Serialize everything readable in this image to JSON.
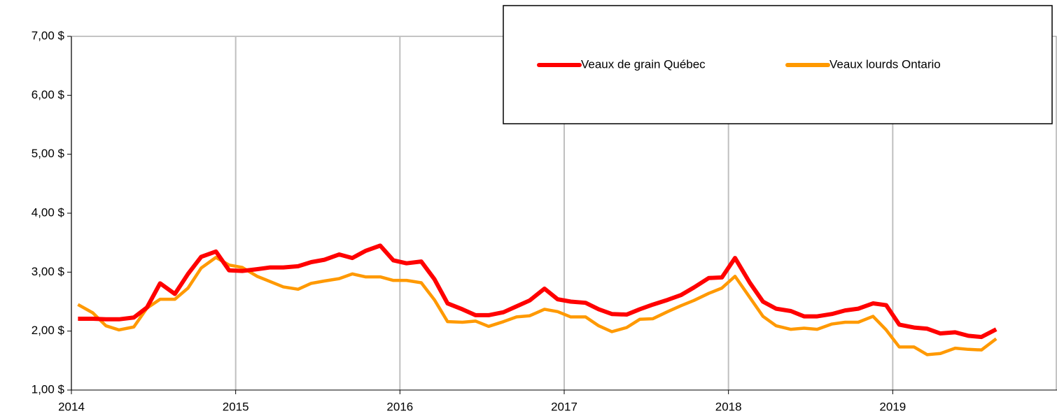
{
  "chart_data": {
    "type": "line",
    "x": [
      2014.04,
      2014.13,
      2014.21,
      2014.29,
      2014.38,
      2014.46,
      2014.54,
      2014.63,
      2014.71,
      2014.79,
      2014.88,
      2014.96,
      2015.04,
      2015.13,
      2015.21,
      2015.29,
      2015.38,
      2015.46,
      2015.54,
      2015.63,
      2015.71,
      2015.79,
      2015.88,
      2015.96,
      2016.04,
      2016.13,
      2016.21,
      2016.29,
      2016.38,
      2016.46,
      2016.54,
      2016.63,
      2016.71,
      2016.79,
      2016.88,
      2016.96,
      2017.04,
      2017.13,
      2017.21,
      2017.29,
      2017.38,
      2017.46,
      2017.54,
      2017.63,
      2017.71,
      2017.79,
      2017.88,
      2017.96,
      2018.04,
      2018.13,
      2018.21,
      2018.29,
      2018.38,
      2018.46,
      2018.54,
      2018.63,
      2018.71,
      2018.79,
      2018.88,
      2018.96,
      2019.04,
      2019.13,
      2019.21,
      2019.29,
      2019.38,
      2019.46,
      2019.54,
      2019.63
    ],
    "series": [
      {
        "name": "Veaux de grain Québec",
        "color": "#ff0000",
        "values": [
          2.21,
          2.21,
          2.2,
          2.2,
          2.23,
          2.4,
          2.81,
          2.63,
          2.97,
          3.26,
          3.35,
          3.03,
          3.02,
          3.05,
          3.08,
          3.08,
          3.1,
          3.17,
          3.21,
          3.3,
          3.24,
          3.36,
          3.45,
          3.2,
          3.15,
          3.18,
          2.88,
          2.47,
          2.37,
          2.27,
          2.27,
          2.32,
          2.42,
          2.52,
          2.72,
          2.54,
          2.5,
          2.48,
          2.37,
          2.29,
          2.28,
          2.37,
          2.45,
          2.53,
          2.61,
          2.74,
          2.9,
          2.91,
          3.24,
          2.82,
          2.5,
          2.38,
          2.34,
          2.25,
          2.25,
          2.29,
          2.35,
          2.38,
          2.47,
          2.44,
          2.11,
          2.06,
          2.04,
          1.96,
          1.98,
          1.92,
          1.9,
          2.03
        ]
      },
      {
        "name": "Veaux lourds Ontario",
        "color": "#ff9900",
        "values": [
          2.45,
          2.31,
          2.09,
          2.02,
          2.07,
          2.39,
          2.54,
          2.54,
          2.73,
          3.07,
          3.25,
          3.12,
          3.08,
          2.93,
          2.84,
          2.75,
          2.71,
          2.81,
          2.85,
          2.89,
          2.97,
          2.92,
          2.92,
          2.86,
          2.86,
          2.82,
          2.53,
          2.16,
          2.15,
          2.17,
          2.08,
          2.16,
          2.24,
          2.26,
          2.37,
          2.33,
          2.24,
          2.24,
          2.09,
          1.99,
          2.06,
          2.2,
          2.21,
          2.33,
          2.43,
          2.52,
          2.64,
          2.73,
          2.93,
          2.57,
          2.25,
          2.09,
          2.03,
          2.05,
          2.03,
          2.12,
          2.15,
          2.15,
          2.25,
          2.02,
          1.73,
          1.73,
          1.6,
          1.62,
          1.71,
          1.69,
          1.68,
          1.87
        ]
      }
    ],
    "xlim": [
      2014,
      2020
    ],
    "xticks": [
      2014,
      2015,
      2016,
      2017,
      2018,
      2019
    ],
    "ylim": [
      1,
      7
    ],
    "yticks": [
      {
        "value": 1,
        "label": "1,00 $"
      },
      {
        "value": 2,
        "label": "2,00 $"
      },
      {
        "value": 3,
        "label": "3,00 $"
      },
      {
        "value": 4,
        "label": "4,00 $"
      },
      {
        "value": 5,
        "label": "5,00 $"
      },
      {
        "value": 6,
        "label": "6,00 $"
      },
      {
        "value": 7,
        "label": "7,00 $"
      }
    ],
    "grid": "x",
    "legend": "top-right"
  }
}
